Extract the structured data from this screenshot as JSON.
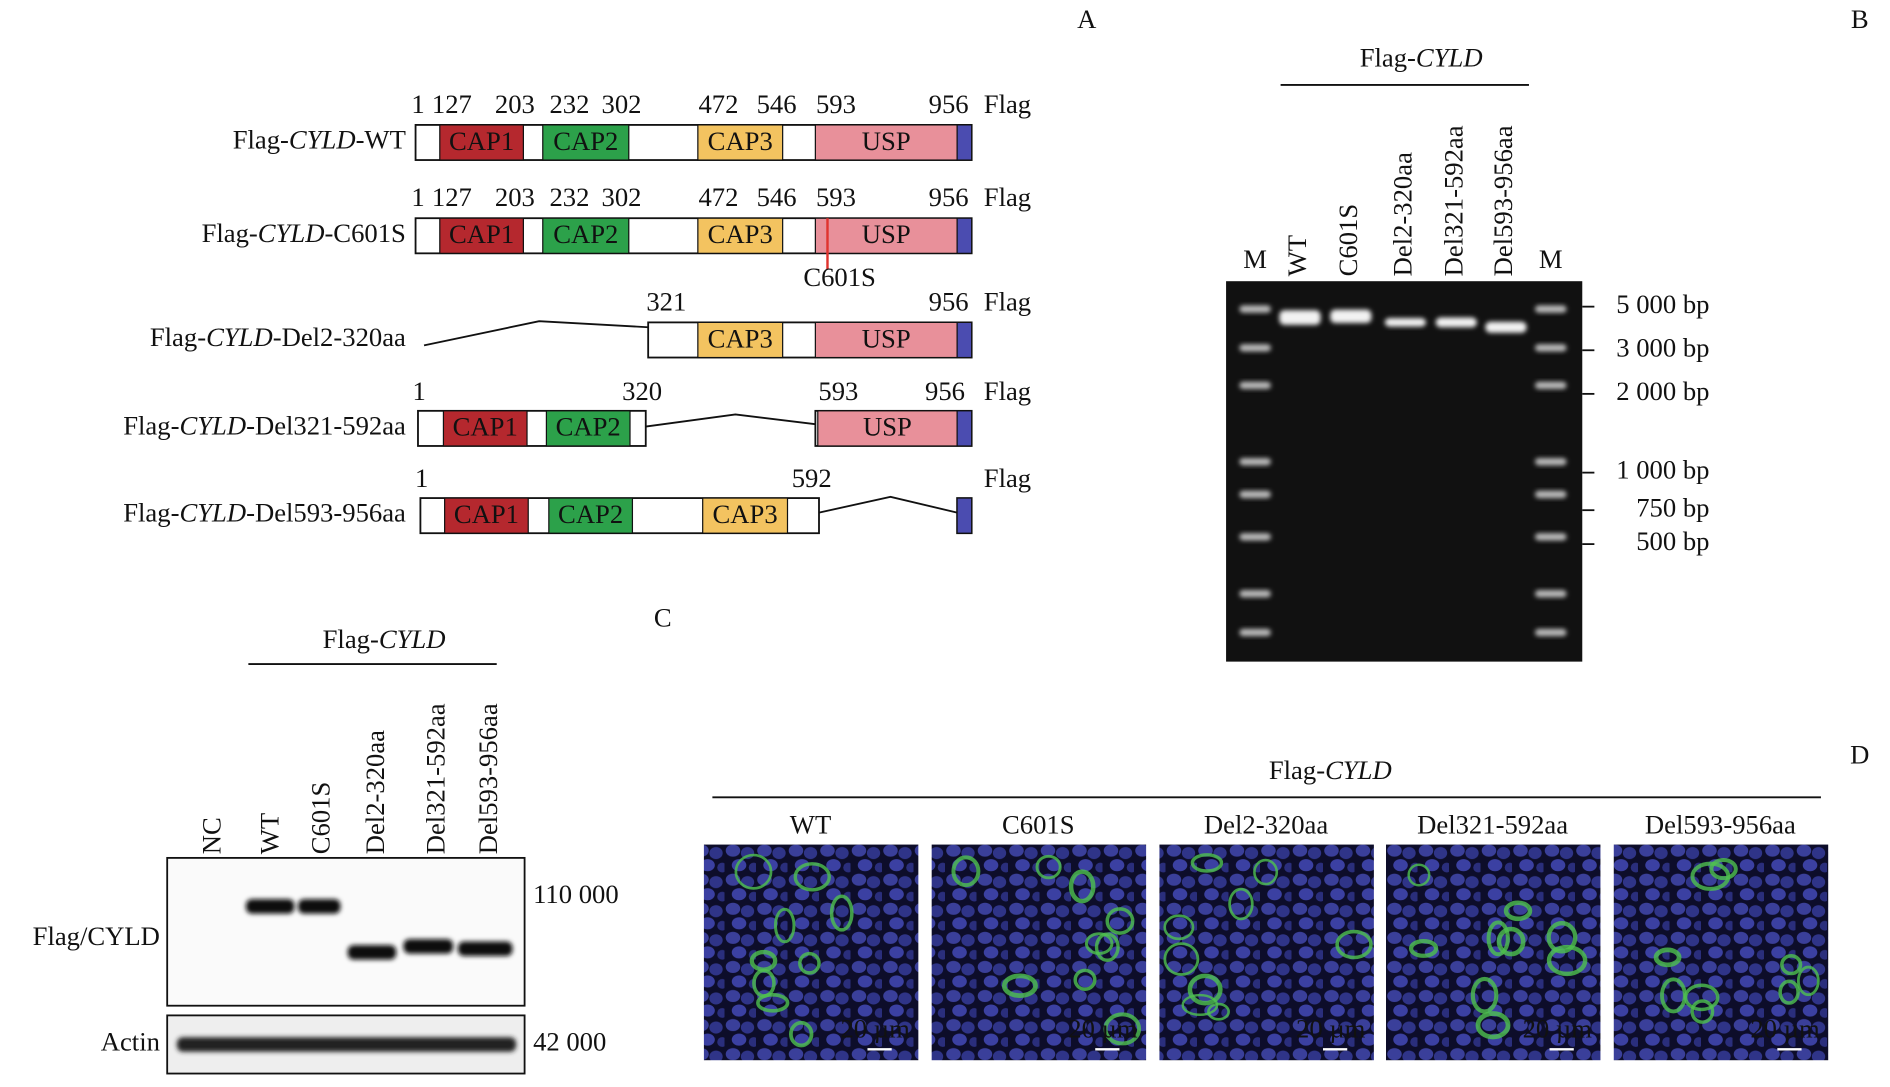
{
  "panel_labels": {
    "a": "A",
    "b": "B",
    "c": "C",
    "d": "D"
  },
  "panel_a": {
    "constructs": [
      {
        "name": {
          "prefix": "Flag-",
          "gene": "CYLD",
          "suffix": "-WT"
        },
        "positions": [
          "1",
          "127",
          "203",
          "232",
          "302",
          "472",
          "546",
          "593",
          "956"
        ],
        "domains": [
          "CAP1",
          "CAP2",
          "CAP3",
          "USP"
        ],
        "tag": "Flag"
      },
      {
        "name": {
          "prefix": "Flag-",
          "gene": "CYLD",
          "suffix": "-C601S"
        },
        "positions": [
          "1",
          "127",
          "203",
          "232",
          "302",
          "472",
          "546",
          "593",
          "956"
        ],
        "domains": [
          "CAP1",
          "CAP2",
          "CAP3",
          "USP"
        ],
        "tag": "Flag",
        "mutation": "C601S"
      },
      {
        "name": {
          "prefix": "Flag-",
          "gene": "CYLD",
          "suffix": "-Del2-320aa"
        },
        "positions": [
          "321",
          "956"
        ],
        "domains": [
          "CAP3",
          "USP"
        ],
        "tag": "Flag"
      },
      {
        "name": {
          "prefix": "Flag-",
          "gene": "CYLD",
          "suffix": "-Del321-592aa"
        },
        "positions": [
          "1",
          "320",
          "593",
          "956"
        ],
        "domains": [
          "CAP1",
          "CAP2",
          "USP"
        ],
        "tag": "Flag"
      },
      {
        "name": {
          "prefix": "Flag-",
          "gene": "CYLD",
          "suffix": "-Del593-956aa"
        },
        "positions": [
          "1",
          "592"
        ],
        "domains": [
          "CAP1",
          "CAP2",
          "CAP3"
        ],
        "tag": "Flag"
      }
    ]
  },
  "panel_b": {
    "header": {
      "prefix": "Flag-",
      "gene": "CYLD"
    },
    "lanes": [
      "M",
      "WT",
      "C601S",
      "Del2-320aa",
      "Del321-592aa",
      "Del593-956aa",
      "M"
    ],
    "markers": [
      "5 000 bp",
      "3 000 bp",
      "2 000 bp",
      "1 000 bp",
      "750 bp",
      "500 bp"
    ]
  },
  "panel_c": {
    "header": {
      "prefix": "Flag-",
      "gene": "CYLD"
    },
    "lanes": [
      "NC",
      "WT",
      "C601S",
      "Del2-320aa",
      "Del321-592aa",
      "Del593-956aa"
    ],
    "rows": [
      "Flag/CYLD",
      "Actin"
    ],
    "sizes": [
      "110 000",
      "42 000"
    ]
  },
  "panel_d": {
    "header": {
      "prefix": "Flag-",
      "gene": "CYLD"
    },
    "samples": [
      "WT",
      "C601S",
      "Del2-320aa",
      "Del321-592aa",
      "Del593-956aa"
    ],
    "scale_bar": "20 µm"
  }
}
